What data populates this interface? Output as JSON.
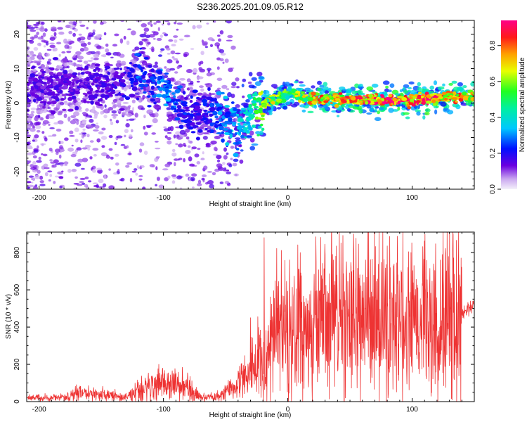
{
  "figure": {
    "title": "S236.2025.201.09.05.R12"
  },
  "chart_data": [
    {
      "type": "heatmap",
      "title": "S236.2025.201.09.05.R12",
      "xlabel": "Height of straight line (km)",
      "ylabel": "Frequency (Hz)",
      "xlim": [
        -210,
        150
      ],
      "ylim": [
        -25,
        24
      ],
      "xticks": [
        -200,
        -100,
        0,
        100
      ],
      "xtick_labels": [
        "-200",
        "-100",
        "0",
        "100"
      ],
      "yticks": [
        -20,
        -10,
        0,
        10,
        20
      ],
      "ytick_labels": [
        "-20",
        "-10",
        "0",
        "10",
        "20"
      ],
      "colorbar": {
        "label": "Normalized spectral amplitude",
        "range": [
          0,
          0.94
        ],
        "ticks": [
          0,
          0.2,
          0.4,
          0.6,
          0.8
        ],
        "tick_labels": [
          "0.0",
          "0.2",
          "0.4",
          "0.6",
          "0.8"
        ],
        "colormap": "rainbow (lavender-purple-blue-cyan-green-yellow-orange-red-magenta)"
      },
      "ridge": {
        "description": "dominant frequency vs height",
        "x": [
          -210,
          -180,
          -150,
          -130,
          -120,
          -110,
          -100,
          -90,
          -80,
          -70,
          -60,
          -50,
          -40,
          -30,
          -20,
          -10,
          0,
          10,
          20,
          40,
          60,
          80,
          100,
          120,
          140,
          150
        ],
        "y": [
          5,
          5,
          5,
          6,
          8,
          6,
          4,
          0,
          -3,
          -3,
          -2,
          -5,
          -7,
          -3,
          0,
          1,
          3,
          2,
          1,
          1,
          0.8,
          0.8,
          0.8,
          1.5,
          2,
          2
        ],
        "amplitude": [
          0.15,
          0.15,
          0.15,
          0.18,
          0.25,
          0.22,
          0.3,
          0.25,
          0.2,
          0.18,
          0.25,
          0.3,
          0.35,
          0.4,
          0.6,
          0.65,
          0.5,
          0.6,
          0.7,
          0.75,
          0.8,
          0.85,
          0.85,
          0.8,
          0.75,
          0.7
        ]
      }
    },
    {
      "type": "line",
      "xlabel": "Height of straight line (km)",
      "ylabel": "SNR (10 * v/v)",
      "xlim": [
        -210,
        150
      ],
      "ylim": [
        0,
        910
      ],
      "xticks": [
        -200,
        -100,
        0,
        100
      ],
      "xtick_labels": [
        "-200",
        "-100",
        "0",
        "100"
      ],
      "yticks": [
        0,
        200,
        400,
        600,
        800
      ],
      "ytick_labels": [
        "0",
        "200",
        "400",
        "600",
        "800"
      ],
      "color": "#ee3333",
      "envelope": {
        "description": "approximate mean SNR level vs height (trace oscillates strongly around this)",
        "x": [
          -210,
          -175,
          -170,
          -130,
          -120,
          -100,
          -80,
          -70,
          -55,
          -45,
          -35,
          -25,
          -20,
          -10,
          0,
          20,
          40,
          60,
          80,
          100,
          120,
          140,
          150
        ],
        "y": [
          20,
          25,
          50,
          25,
          60,
          100,
          80,
          20,
          30,
          70,
          120,
          180,
          250,
          320,
          360,
          380,
          420,
          430,
          440,
          430,
          440,
          480,
          520
        ]
      },
      "spikes": {
        "x": [
          -19,
          35,
          53,
          -30,
          10,
          108
        ],
        "y": [
          880,
          905,
          900,
          450,
          800,
          175
        ]
      }
    }
  ]
}
